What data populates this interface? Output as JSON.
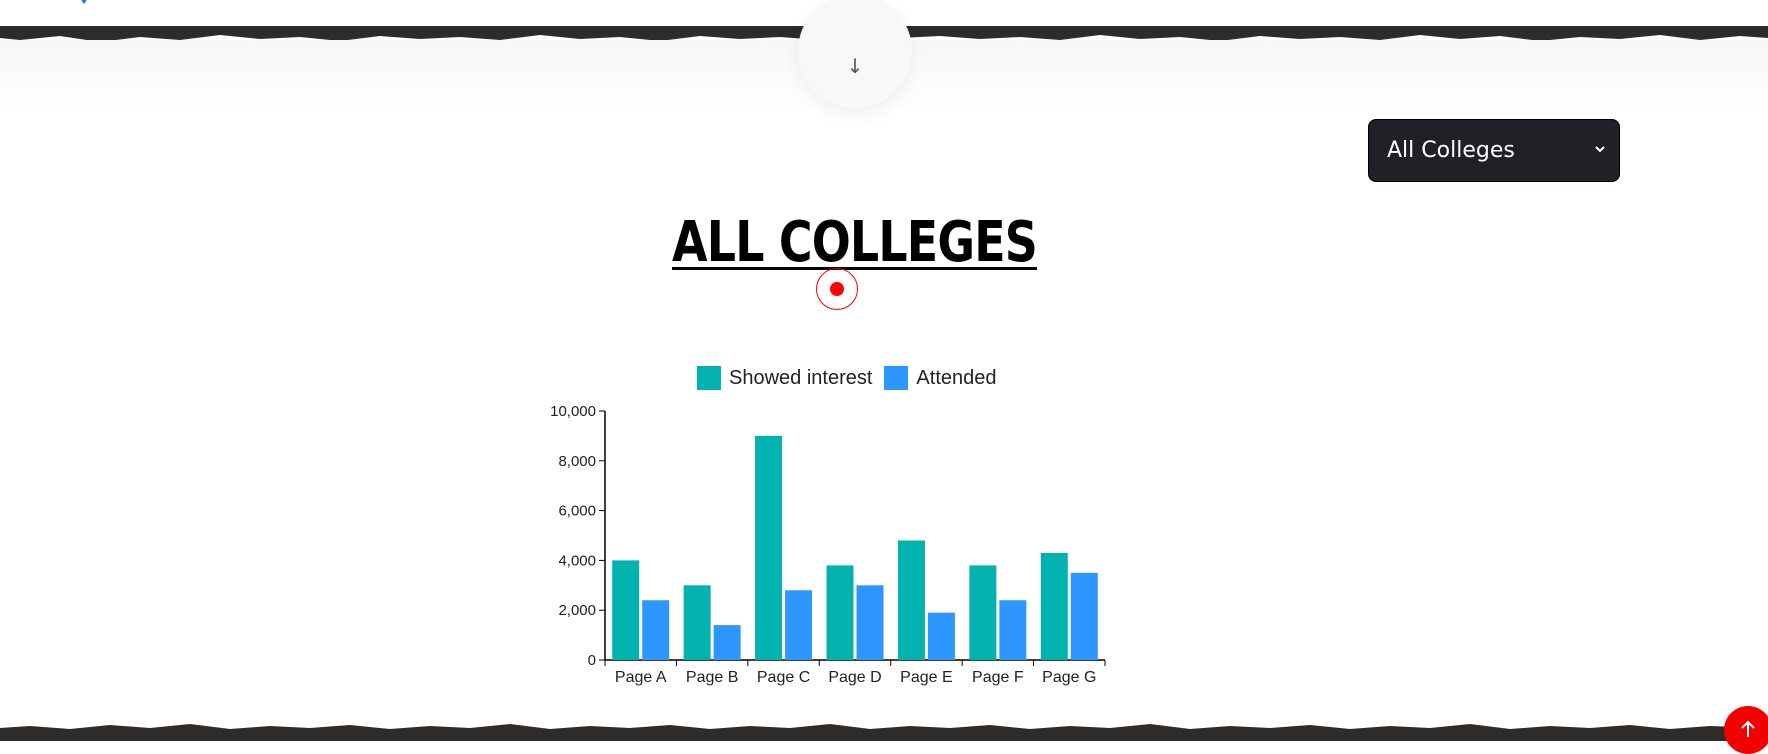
{
  "scroll_hint": {
    "arrow": "↓",
    "icon": "arrow-down-icon"
  },
  "selector": {
    "value": "All Colleges",
    "icon": "chevron-down-icon"
  },
  "page_title": "ALL COLLEGES",
  "colors": {
    "showed_interest": "#02b2af",
    "attended": "#2e96ff",
    "accent_red": "#f20000",
    "select_bg": "#1f2126"
  },
  "chart_data": {
    "type": "bar",
    "categories": [
      "Page A",
      "Page B",
      "Page C",
      "Page D",
      "Page E",
      "Page F",
      "Page G"
    ],
    "series": [
      {
        "name": "Showed interest",
        "values": [
          4000,
          3000,
          9000,
          3800,
          4800,
          3800,
          4300
        ]
      },
      {
        "name": "Attended",
        "values": [
          2400,
          1400,
          2800,
          3000,
          1900,
          2400,
          3500
        ]
      }
    ],
    "ylim": [
      0,
      10000
    ],
    "yticks": [
      "0",
      "2,000",
      "4,000",
      "6,000",
      "8,000",
      "10,000"
    ],
    "legend": "top",
    "grid": false
  },
  "back_to_top": {
    "icon": "arrow-up-icon"
  }
}
